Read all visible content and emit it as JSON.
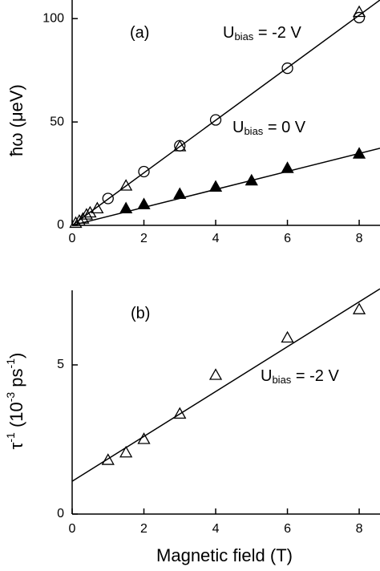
{
  "chart_data": [
    {
      "type": "scatter",
      "ylabel": [
        {
          "text": "ħω (μeV)"
        }
      ],
      "annotations": [
        {
          "main": "(a)"
        },
        {
          "main": "U",
          "sub": "bias",
          "tail": " = -2 V"
        },
        {
          "main": "U",
          "sub": "bias",
          "tail": " = 0 V"
        }
      ],
      "xlim": [
        0,
        8.58
      ],
      "ylim": [
        0,
        109
      ],
      "xticks": [
        0,
        2,
        4,
        6,
        8
      ],
      "yticks": [
        0,
        50,
        100
      ],
      "series": [
        {
          "color": "#000000",
          "marker": "circle",
          "filled": false,
          "x": [
            1,
            2,
            3,
            4,
            6,
            8
          ],
          "values": [
            13,
            26,
            38.5,
            51,
            76,
            100.5
          ]
        },
        {
          "color": "#000000",
          "marker": "triangle",
          "filled": false,
          "x": [
            0.1,
            0.2,
            0.3,
            0.4,
            0.5,
            0.7,
            1.5,
            3,
            8
          ],
          "values": [
            1,
            2,
            3,
            5,
            6,
            8,
            19,
            38,
            103
          ]
        },
        {
          "color": "#000000",
          "marker": "triangle",
          "filled": true,
          "x": [
            1.5,
            2,
            3,
            4,
            5,
            6,
            8
          ],
          "values": [
            8,
            10,
            15,
            18.5,
            21.5,
            27.5,
            34.5
          ]
        },
        {
          "color": "#000000",
          "marker": null,
          "x": [
            0,
            8.58
          ],
          "values": [
            0,
            109
          ]
        },
        {
          "color": "#000000",
          "marker": null,
          "x": [
            0,
            8.58
          ],
          "values": [
            0,
            37.3
          ]
        }
      ]
    },
    {
      "type": "scatter",
      "xlabel": "Magnetic field (T)",
      "ylabel": [
        {
          "text": "τ"
        },
        {
          "text": "-1",
          "sup": true
        },
        {
          "text": " (10"
        },
        {
          "text": "-3",
          "sup": true
        },
        {
          "text": " ps"
        },
        {
          "text": "-1",
          "sup": true
        },
        {
          "text": ")"
        }
      ],
      "annotations": [
        {
          "main": "(b)"
        },
        {
          "main": "U",
          "sub": "bias",
          "tail": " = -2 V"
        }
      ],
      "xlim": [
        0,
        8.58
      ],
      "ylim": [
        0,
        7.5
      ],
      "xticks": [
        0,
        2,
        4,
        6,
        8
      ],
      "yticks": [
        0,
        5
      ],
      "series": [
        {
          "color": "#000000",
          "marker": "triangle",
          "filled": false,
          "x": [
            1,
            1.5,
            2,
            3,
            4,
            6,
            8
          ],
          "values": [
            1.8,
            2.05,
            2.5,
            3.35,
            4.65,
            5.9,
            6.85
          ]
        },
        {
          "color": "#000000",
          "marker": null,
          "x": [
            0,
            8.58
          ],
          "values": [
            1.1,
            7.55
          ]
        }
      ]
    }
  ]
}
